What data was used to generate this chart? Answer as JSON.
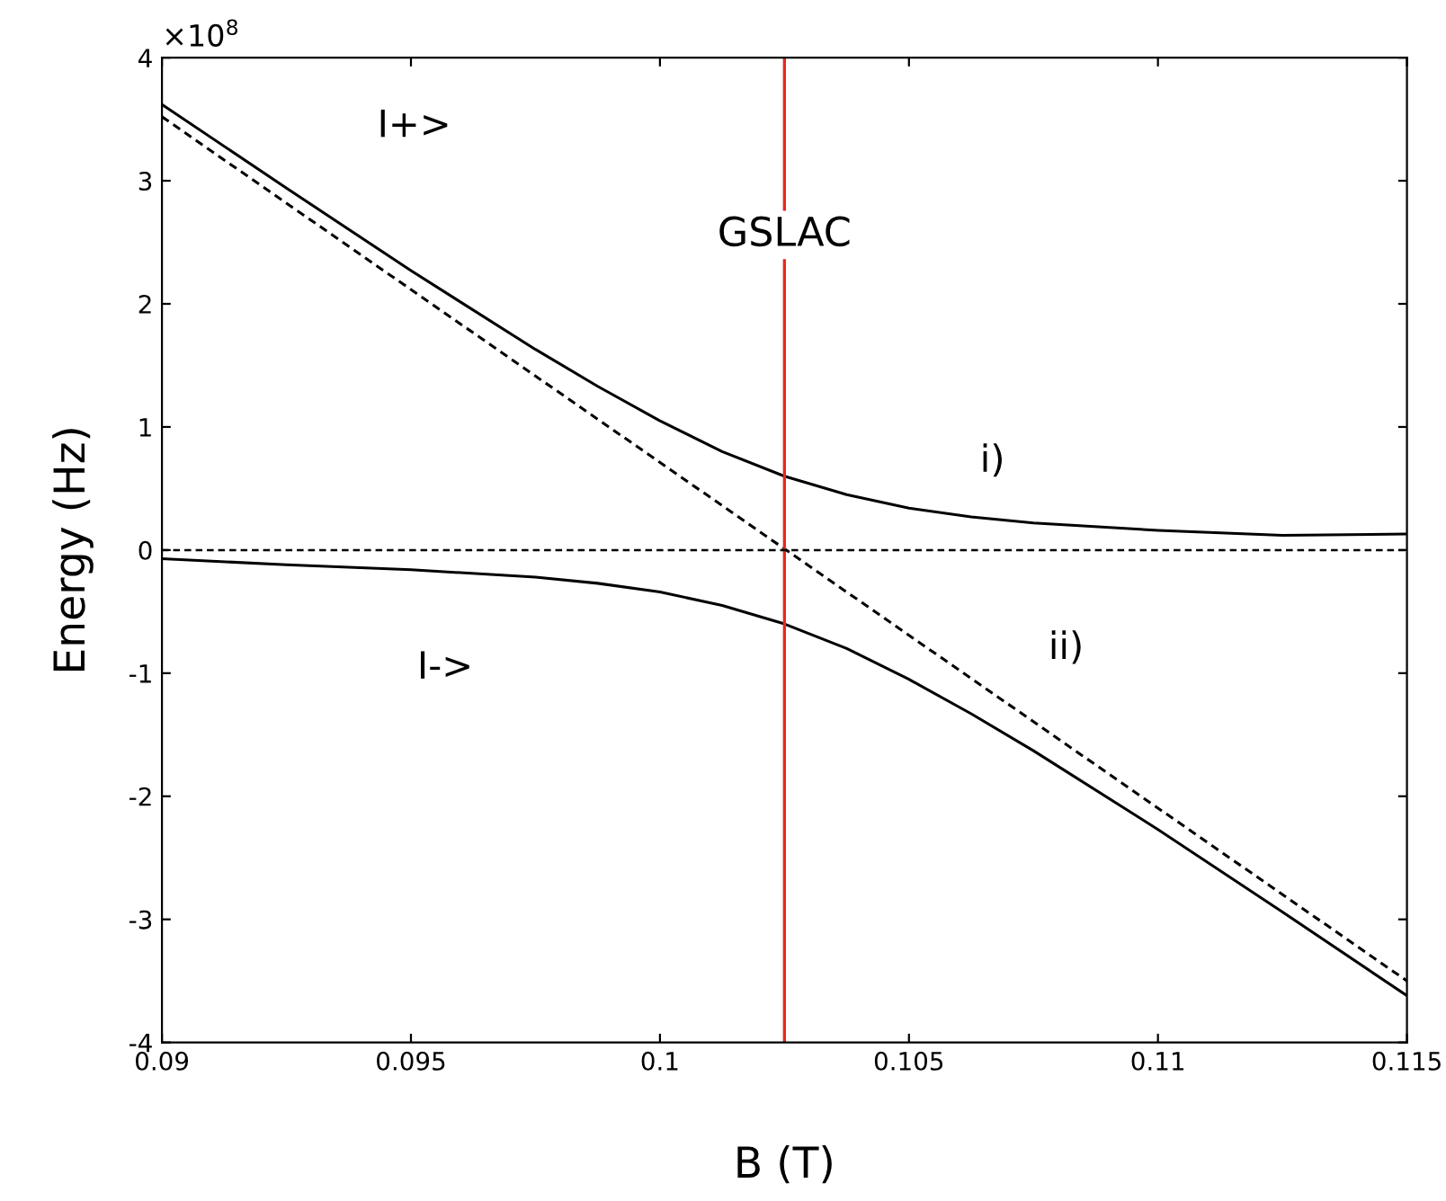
{
  "chart_data": {
    "type": "line",
    "xlabel": "B (T)",
    "ylabel": "Energy (Hz)",
    "xlim": [
      0.09,
      0.115
    ],
    "xticks": [
      0.09,
      0.095,
      0.1,
      0.105,
      0.11,
      0.115
    ],
    "ylim": [
      -4,
      4
    ],
    "yticks": [
      -4,
      -3,
      -2,
      -1,
      0,
      1,
      2,
      3,
      4
    ],
    "series": [
      {
        "color": "#000000",
        "line_style": "solid",
        "x": [
          0.09,
          0.0925,
          0.095,
          0.0975,
          0.09875,
          0.1,
          0.10125,
          0.1025,
          0.10375,
          0.105,
          0.10625,
          0.1075,
          0.11,
          0.1125,
          0.115
        ],
        "values": [
          3.62,
          2.94,
          2.27,
          1.63,
          1.33,
          1.05,
          0.8,
          0.6,
          0.45,
          0.34,
          0.27,
          0.22,
          0.16,
          0.12,
          0.13
        ]
      },
      {
        "color": "#000000",
        "line_style": "solid",
        "x": [
          0.09,
          0.0925,
          0.095,
          0.0975,
          0.09875,
          0.1,
          0.10125,
          0.1025,
          0.10375,
          0.105,
          0.10625,
          0.1075,
          0.11,
          0.1125,
          0.115
        ],
        "values": [
          -0.07,
          -0.12,
          -0.16,
          -0.22,
          -0.27,
          -0.34,
          -0.45,
          -0.6,
          -0.8,
          -1.05,
          -1.33,
          -1.63,
          -2.27,
          -2.94,
          -3.62
        ]
      },
      {
        "color": "#000000",
        "line_style": "dashed",
        "x": [
          0.09,
          0.115
        ],
        "values": [
          3.52,
          -3.5
        ]
      }
    ],
    "ref_lines": [
      {
        "axis": "x",
        "value": 0.1025,
        "label": "GSLAC",
        "color": "#e8271f",
        "line_style": "solid"
      },
      {
        "axis": "y",
        "value": 0,
        "color": "#000000",
        "line_style": "dashed"
      }
    ],
    "annotations": [
      "×10$^{8}$",
      "I+>",
      "I->",
      "i)",
      "ii)"
    ],
    "grid": false,
    "legend": false,
    "marker": "none"
  }
}
